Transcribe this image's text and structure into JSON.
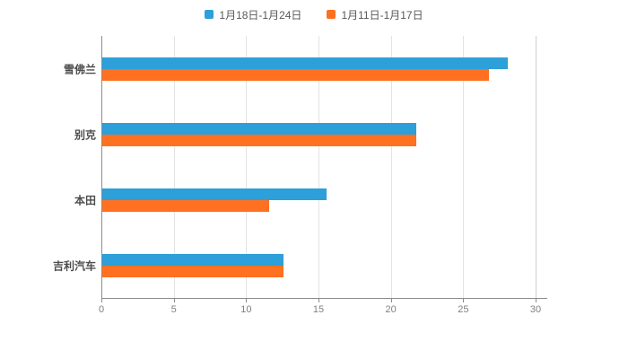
{
  "legend": {
    "items": [
      {
        "label": "1月18日-1月24日",
        "color": "#2d9fd9"
      },
      {
        "label": "1月11日-1月17日",
        "color": "#ff7021"
      }
    ]
  },
  "chart_data": {
    "type": "bar",
    "orientation": "horizontal",
    "title": "",
    "xlabel": "",
    "ylabel": "",
    "categories": [
      "雪佛兰",
      "别克",
      "本田",
      "吉利汽车"
    ],
    "series": [
      {
        "name": "1月18日-1月24日",
        "color": "#2d9fd9",
        "values": [
          28,
          21.7,
          15.5,
          12.5
        ]
      },
      {
        "name": "1月11日-1月17日",
        "color": "#ff7021",
        "values": [
          26.7,
          21.7,
          11.5,
          12.5
        ]
      }
    ],
    "xlim": [
      0,
      30
    ],
    "xticks": [
      0,
      5,
      10,
      15,
      20,
      25,
      30
    ],
    "grid": true,
    "legend_position": "top"
  }
}
